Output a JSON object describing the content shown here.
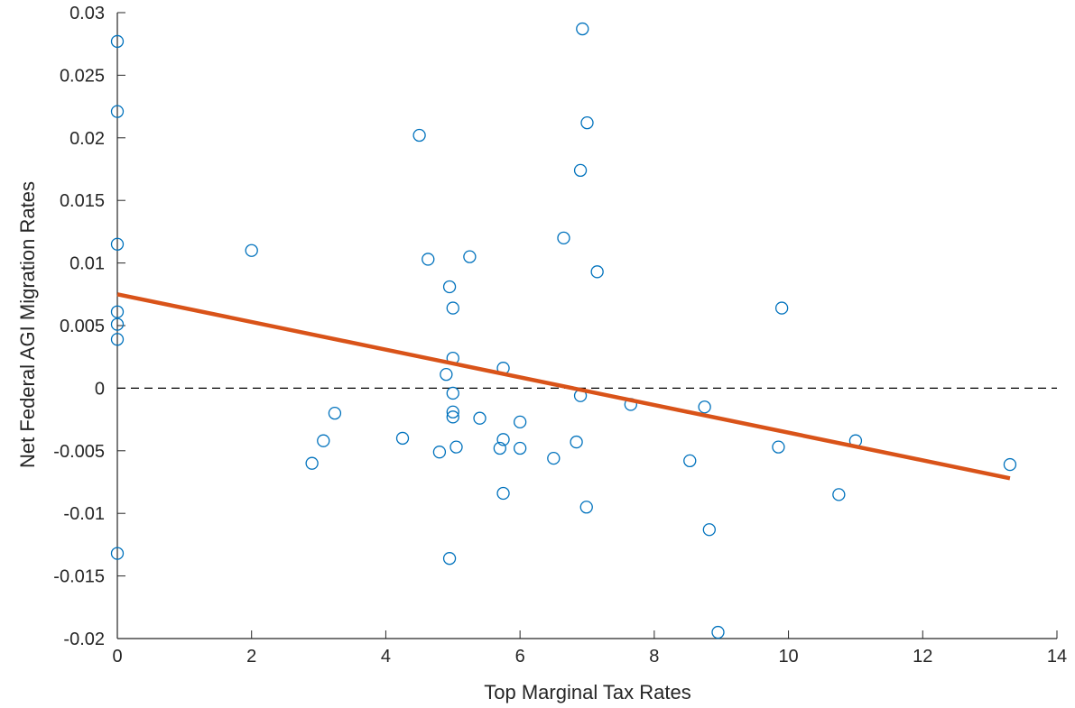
{
  "chart_data": {
    "type": "scatter",
    "xlabel": "Top Marginal Tax Rates",
    "ylabel": "Net Federal AGI Migration Rates",
    "xlim": [
      0,
      14
    ],
    "ylim": [
      -0.02,
      0.03
    ],
    "xticks": [
      0,
      2,
      4,
      6,
      8,
      10,
      12,
      14
    ],
    "xtick_labels": [
      "0",
      "2",
      "4",
      "6",
      "8",
      "10",
      "12",
      "14"
    ],
    "yticks": [
      -0.02,
      -0.015,
      -0.01,
      -0.005,
      0,
      0.005,
      0.01,
      0.015,
      0.02,
      0.025,
      0.03
    ],
    "ytick_labels": [
      "-0.02",
      "-0.015",
      "-0.01",
      "-0.005",
      "0",
      "0.005",
      "0.01",
      "0.015",
      "0.02",
      "0.025",
      "0.03"
    ],
    "grid": false,
    "reference_line": {
      "y": 0,
      "style": "dashed",
      "color": "#000000"
    },
    "marker_color": "#0072BD",
    "fit_color": "#D95319",
    "points": [
      {
        "x": 0,
        "y": 0.0277
      },
      {
        "x": 0,
        "y": 0.0221
      },
      {
        "x": 0,
        "y": 0.0115
      },
      {
        "x": 0,
        "y": 0.0061
      },
      {
        "x": 0,
        "y": 0.0051
      },
      {
        "x": 0,
        "y": 0.0039
      },
      {
        "x": 0,
        "y": -0.0132
      },
      {
        "x": 2.0,
        "y": 0.011
      },
      {
        "x": 2.9,
        "y": -0.006
      },
      {
        "x": 3.07,
        "y": -0.0042
      },
      {
        "x": 3.24,
        "y": -0.002
      },
      {
        "x": 4.25,
        "y": -0.004
      },
      {
        "x": 4.5,
        "y": 0.0202
      },
      {
        "x": 4.63,
        "y": 0.0103
      },
      {
        "x": 4.8,
        "y": -0.0051
      },
      {
        "x": 4.9,
        "y": 0.0011
      },
      {
        "x": 4.95,
        "y": 0.0081
      },
      {
        "x": 4.95,
        "y": -0.0136
      },
      {
        "x": 5.0,
        "y": 0.0064
      },
      {
        "x": 5.0,
        "y": 0.0024
      },
      {
        "x": 5.0,
        "y": -0.0004
      },
      {
        "x": 5.0,
        "y": -0.0019
      },
      {
        "x": 5.0,
        "y": -0.0023
      },
      {
        "x": 5.05,
        "y": -0.0047
      },
      {
        "x": 5.25,
        "y": 0.0105
      },
      {
        "x": 5.4,
        "y": -0.0024
      },
      {
        "x": 5.7,
        "y": -0.0048
      },
      {
        "x": 5.75,
        "y": 0.0016
      },
      {
        "x": 5.75,
        "y": -0.0041
      },
      {
        "x": 5.75,
        "y": -0.0084
      },
      {
        "x": 6.0,
        "y": -0.0027
      },
      {
        "x": 6.0,
        "y": -0.0048
      },
      {
        "x": 6.5,
        "y": -0.0056
      },
      {
        "x": 6.65,
        "y": 0.012
      },
      {
        "x": 6.84,
        "y": -0.0043
      },
      {
        "x": 6.9,
        "y": 0.0174
      },
      {
        "x": 6.9,
        "y": -0.0006
      },
      {
        "x": 6.93,
        "y": 0.0287
      },
      {
        "x": 6.99,
        "y": -0.0095
      },
      {
        "x": 7.0,
        "y": 0.0212
      },
      {
        "x": 7.15,
        "y": 0.0093
      },
      {
        "x": 7.65,
        "y": -0.0013
      },
      {
        "x": 8.53,
        "y": -0.0058
      },
      {
        "x": 8.75,
        "y": -0.0015
      },
      {
        "x": 8.82,
        "y": -0.0113
      },
      {
        "x": 8.95,
        "y": -0.0195
      },
      {
        "x": 9.85,
        "y": -0.0047
      },
      {
        "x": 9.9,
        "y": 0.0064
      },
      {
        "x": 10.75,
        "y": -0.0085
      },
      {
        "x": 11.0,
        "y": -0.0042
      },
      {
        "x": 13.3,
        "y": -0.0061
      }
    ],
    "fit_line": {
      "x": [
        0,
        13.3
      ],
      "y": [
        0.0075,
        -0.0072
      ]
    }
  }
}
